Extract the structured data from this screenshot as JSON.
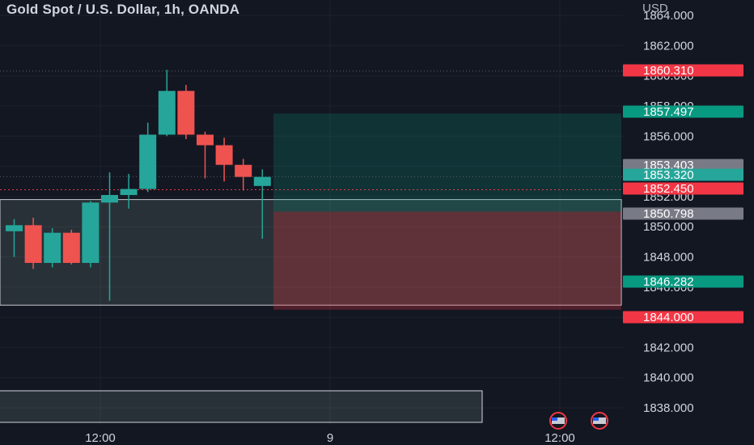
{
  "header": {
    "symbol_title": "Gold Spot / U.S. Dollar, 1h, OANDA",
    "currency": "USD"
  },
  "price_axis": {
    "ticks": [
      "1838.000",
      "1840.000",
      "1842.000",
      "1844.000",
      "1846.000",
      "1848.000",
      "1850.000",
      "1852.000",
      "1854.000",
      "1856.000",
      "1858.000",
      "1860.000",
      "1862.000",
      "1864.000"
    ]
  },
  "time_axis": {
    "ticks": [
      "12:00",
      "9",
      "12:00"
    ]
  },
  "price_tags": [
    {
      "value": "1860.310",
      "color": "#f23645"
    },
    {
      "value": "1857.497",
      "color": "#089981"
    },
    {
      "value": "1853.403",
      "color": "#787b86"
    },
    {
      "value": "1853.320",
      "color": "#26a69a"
    },
    {
      "value": "1852.450",
      "color": "#f23645"
    },
    {
      "value": "1850.798",
      "color": "#787b86"
    },
    {
      "value": "1846.282",
      "color": "#089981"
    },
    {
      "value": "1844.000",
      "color": "#f23645"
    }
  ],
  "colors": {
    "up": "#26a69a",
    "down": "#ef5350",
    "background": "#131722",
    "grid": "#1e222d"
  },
  "chart_data": {
    "type": "candlestick",
    "title": "Gold Spot / U.S. Dollar, 1h, OANDA",
    "y_unit": "USD",
    "ylim": [
      1837,
      1864.5
    ],
    "candles": [
      {
        "open": 1849.7,
        "high": 1850.5,
        "low": 1848.0,
        "close": 1850.1
      },
      {
        "open": 1850.1,
        "high": 1850.6,
        "low": 1847.2,
        "close": 1847.6
      },
      {
        "open": 1847.6,
        "high": 1849.9,
        "low": 1847.3,
        "close": 1849.6
      },
      {
        "open": 1849.6,
        "high": 1849.8,
        "low": 1847.5,
        "close": 1847.6
      },
      {
        "open": 1847.6,
        "high": 1851.7,
        "low": 1847.3,
        "close": 1851.6
      },
      {
        "open": 1851.6,
        "high": 1853.6,
        "low": 1845.1,
        "close": 1852.1
      },
      {
        "open": 1852.1,
        "high": 1853.5,
        "low": 1851.2,
        "close": 1852.5
      },
      {
        "open": 1852.5,
        "high": 1856.9,
        "low": 1852.3,
        "close": 1856.1
      },
      {
        "open": 1856.1,
        "high": 1860.4,
        "low": 1856.0,
        "close": 1859.0
      },
      {
        "open": 1859.0,
        "high": 1859.4,
        "low": 1855.8,
        "close": 1856.1
      },
      {
        "open": 1856.1,
        "high": 1856.3,
        "low": 1853.2,
        "close": 1855.4
      },
      {
        "open": 1855.4,
        "high": 1855.9,
        "low": 1853.0,
        "close": 1854.1
      },
      {
        "open": 1854.1,
        "high": 1854.5,
        "low": 1852.4,
        "close": 1853.3
      },
      {
        "open": 1852.7,
        "high": 1853.8,
        "low": 1849.2,
        "close": 1853.3
      }
    ],
    "zones": [
      {
        "kind": "range",
        "top": 1851.8,
        "bottom": 1844.8,
        "from": 0,
        "to": "axis"
      },
      {
        "kind": "profit",
        "top": 1857.5,
        "bottom": 1851.0,
        "from": "after-last",
        "to": "axis"
      },
      {
        "kind": "stop",
        "top": 1851.0,
        "bottom": 1844.5,
        "from": "after-last",
        "to": "axis"
      }
    ],
    "lines": [
      1860.31,
      1853.32,
      1852.45
    ]
  }
}
